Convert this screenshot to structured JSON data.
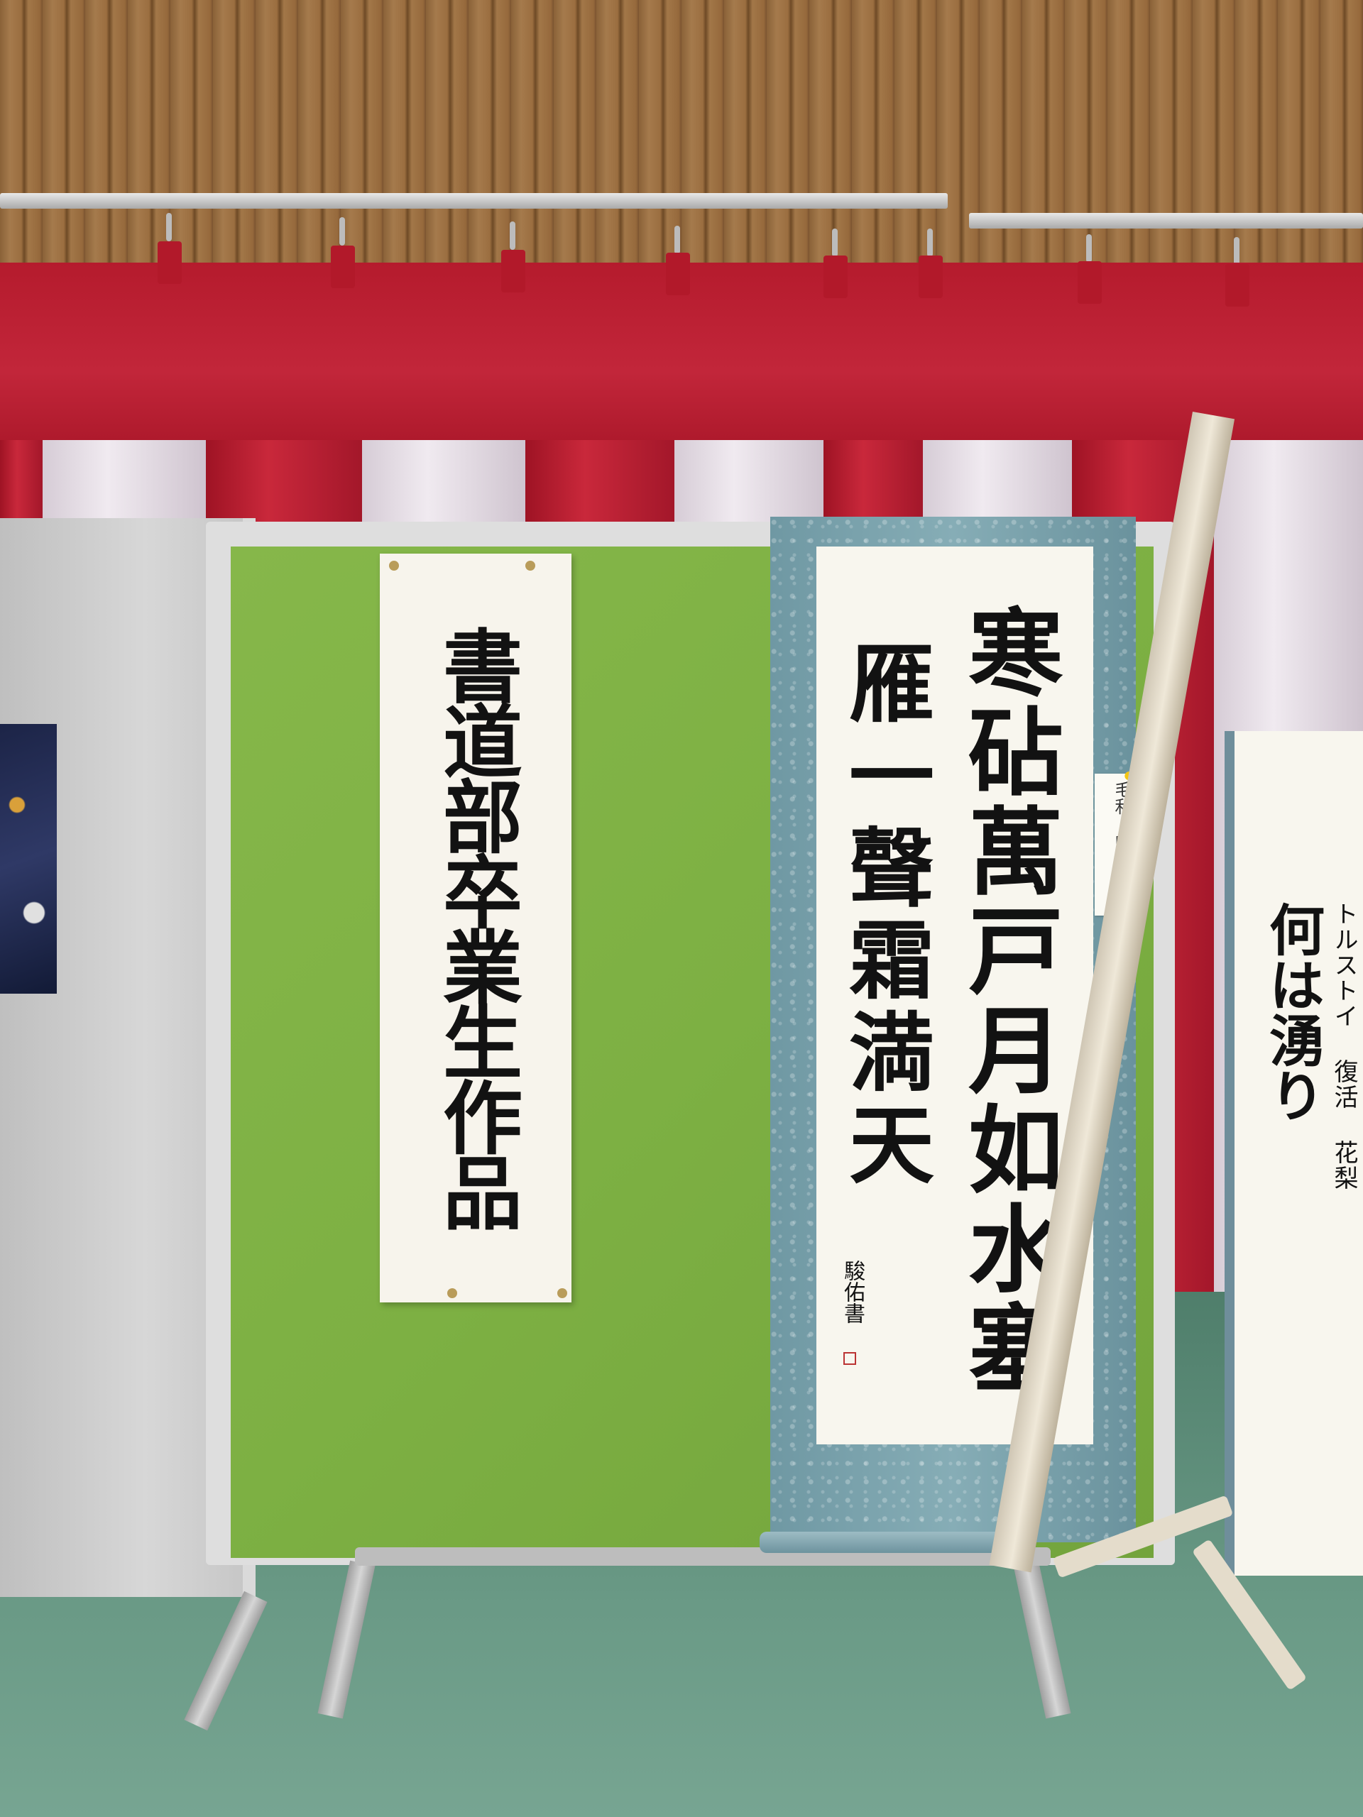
{
  "scene": {
    "colors": {
      "curtain_red": "#b51b2d",
      "curtain_white": "#f0eaf0",
      "board_green": "#7db043",
      "scroll_mount_blue": "#7fa6af",
      "paper": "#f8f6ee",
      "ink": "#121212",
      "floor": "#6a9a86",
      "wall_wood": "#9b6e40"
    },
    "icons": [
      "yellow-flower-icon"
    ]
  },
  "banner_left": {
    "text": "書道部卒業生作品"
  },
  "scroll": {
    "poem_right_column": "寒砧萬戸月如水塞",
    "poem_left_column": "雁一聲霜満天",
    "signature": "駿佑書"
  },
  "name_tag": {
    "text": "毛利 駿佑"
  },
  "right_scroll": {
    "big_text": "何は湧り",
    "small_text": "トルストイ 復活 花梨"
  }
}
